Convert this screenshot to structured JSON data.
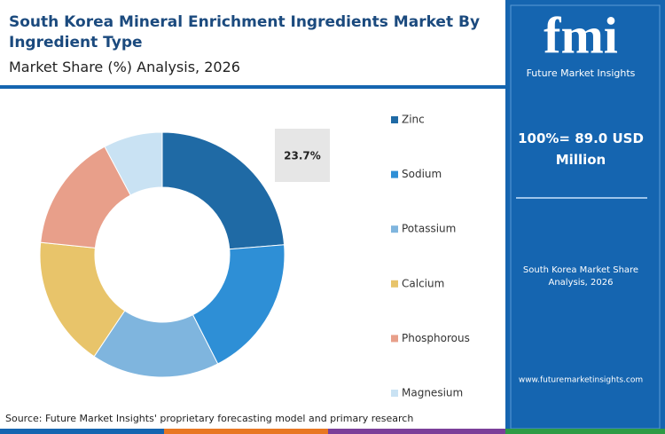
{
  "chart_data": {
    "type": "donut",
    "title": "South Korea Mineral Enrichment Ingredients Market By Ingredient Type",
    "subtitle": "Market Share (%) Analysis, 2026",
    "categories": [
      "Zinc",
      "Sodium",
      "Potassium",
      "Calcium",
      "Phosphorous",
      "Magnesium"
    ],
    "values": [
      23.7,
      18.8,
      16.9,
      17.2,
      15.6,
      7.8
    ],
    "value_labels": [
      "23.7%",
      null,
      null,
      null,
      null,
      null
    ],
    "colors": [
      "#1f6aa5",
      "#2e8fd6",
      "#7fb5de",
      "#e8c46a",
      "#e89f8a",
      "#c9e2f3"
    ],
    "source": "Source: Future Market Insights' proprietary forecasting model and primary research"
  },
  "side_panel": {
    "logo": "fmi",
    "brand": "Future Market Insights",
    "total": "100%= 89.0 USD Million",
    "caption": "South Korea Market Share Analysis, 2026",
    "website": "www.futuremarketinsights.com"
  }
}
